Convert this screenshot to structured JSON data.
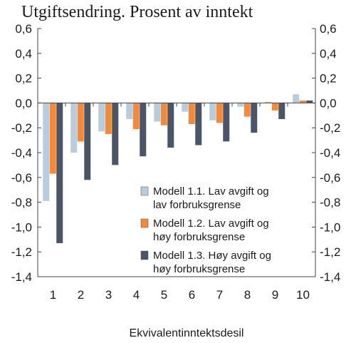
{
  "chart_data": {
    "type": "bar",
    "title": "Utgiftsendring. Prosent av inntekt",
    "xlabel": "Ekvivalentinntektsdesil",
    "ylabel": "",
    "ylim": [
      -1.4,
      0.6
    ],
    "yticks": [
      0.6,
      0.4,
      0.2,
      0.0,
      -0.2,
      -0.4,
      -0.6,
      -0.8,
      -1.0,
      -1.2,
      -1.4
    ],
    "ytick_labels": [
      "0,6",
      "0,4",
      "0,2",
      "0,0",
      "-0,2",
      "-0,4",
      "-0,6",
      "-0,8",
      "-1,0",
      "-1,2",
      "-1,4"
    ],
    "categories": [
      "1",
      "2",
      "3",
      "4",
      "5",
      "6",
      "7",
      "8",
      "9",
      "10"
    ],
    "grid": false,
    "legend_position": "center-right",
    "series": [
      {
        "name": "Modell 1.1. Lav avgift og lav forbruksgrense",
        "legend_lines": [
          "Modell 1.1. Lav avgift og",
          "lav forbruksgrense"
        ],
        "color": "#b8ccdc",
        "values": [
          -0.79,
          -0.4,
          -0.23,
          -0.13,
          -0.15,
          -0.07,
          -0.14,
          -0.03,
          0.01,
          0.07
        ]
      },
      {
        "name": "Modell 1.2. Lav avgift og høy forbruksgrense",
        "legend_lines": [
          "Modell 1.2. Lav avgift og",
          "høy forbruksgrense"
        ],
        "color": "#f28a3a",
        "values": [
          -0.57,
          -0.31,
          -0.25,
          -0.21,
          -0.18,
          -0.17,
          -0.16,
          -0.11,
          -0.06,
          0.02
        ]
      },
      {
        "name": "Modell 1.3. Høy avgift og høy forbruksgrense",
        "legend_lines": [
          "Modell 1.3. Høy avgift og",
          "høy forbruksgrense"
        ],
        "color": "#4a5568",
        "values": [
          -1.13,
          -0.62,
          -0.5,
          -0.43,
          -0.36,
          -0.34,
          -0.31,
          -0.24,
          -0.13,
          0.02
        ]
      }
    ]
  }
}
